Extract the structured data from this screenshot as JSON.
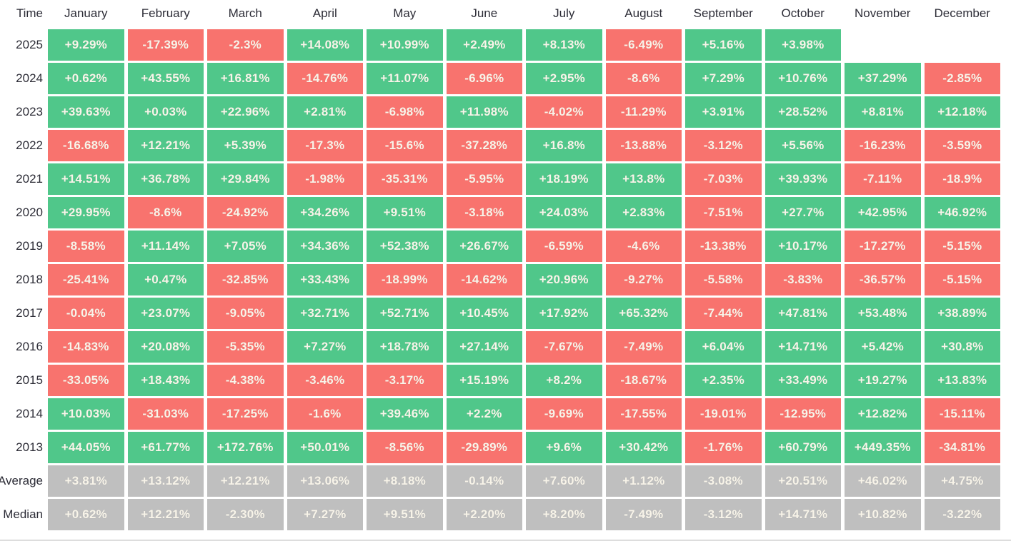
{
  "header": {
    "time_label": "Time"
  },
  "colors": {
    "positive": "#50c78a",
    "negative": "#f8736e",
    "summary": "#bfbfbf",
    "cell_text": "#f8f4e9",
    "label_text": "#2d2d37"
  },
  "chart_data": {
    "type": "heatmap",
    "unit": "%",
    "x_categories": [
      "January",
      "February",
      "March",
      "April",
      "May",
      "June",
      "July",
      "August",
      "September",
      "October",
      "November",
      "December"
    ],
    "y_categories": [
      "2025",
      "2024",
      "2023",
      "2022",
      "2021",
      "2020",
      "2019",
      "2018",
      "2017",
      "2016",
      "2015",
      "2014",
      "2013",
      "Average",
      "Median"
    ],
    "rows": [
      {
        "label": "2025",
        "type": "year",
        "values": [
          "+9.29%",
          "-17.39%",
          "-2.3%",
          "+14.08%",
          "+10.99%",
          "+2.49%",
          "+8.13%",
          "-6.49%",
          "+5.16%",
          "+3.98%",
          null,
          null
        ]
      },
      {
        "label": "2024",
        "type": "year",
        "values": [
          "+0.62%",
          "+43.55%",
          "+16.81%",
          "-14.76%",
          "+11.07%",
          "-6.96%",
          "+2.95%",
          "-8.6%",
          "+7.29%",
          "+10.76%",
          "+37.29%",
          "-2.85%"
        ]
      },
      {
        "label": "2023",
        "type": "year",
        "values": [
          "+39.63%",
          "+0.03%",
          "+22.96%",
          "+2.81%",
          "-6.98%",
          "+11.98%",
          "-4.02%",
          "-11.29%",
          "+3.91%",
          "+28.52%",
          "+8.81%",
          "+12.18%"
        ]
      },
      {
        "label": "2022",
        "type": "year",
        "values": [
          "-16.68%",
          "+12.21%",
          "+5.39%",
          "-17.3%",
          "-15.6%",
          "-37.28%",
          "+16.8%",
          "-13.88%",
          "-3.12%",
          "+5.56%",
          "-16.23%",
          "-3.59%"
        ]
      },
      {
        "label": "2021",
        "type": "year",
        "values": [
          "+14.51%",
          "+36.78%",
          "+29.84%",
          "-1.98%",
          "-35.31%",
          "-5.95%",
          "+18.19%",
          "+13.8%",
          "-7.03%",
          "+39.93%",
          "-7.11%",
          "-18.9%"
        ]
      },
      {
        "label": "2020",
        "type": "year",
        "values": [
          "+29.95%",
          "-8.6%",
          "-24.92%",
          "+34.26%",
          "+9.51%",
          "-3.18%",
          "+24.03%",
          "+2.83%",
          "-7.51%",
          "+27.7%",
          "+42.95%",
          "+46.92%"
        ]
      },
      {
        "label": "2019",
        "type": "year",
        "values": [
          "-8.58%",
          "+11.14%",
          "+7.05%",
          "+34.36%",
          "+52.38%",
          "+26.67%",
          "-6.59%",
          "-4.6%",
          "-13.38%",
          "+10.17%",
          "-17.27%",
          "-5.15%"
        ]
      },
      {
        "label": "2018",
        "type": "year",
        "values": [
          "-25.41%",
          "+0.47%",
          "-32.85%",
          "+33.43%",
          "-18.99%",
          "-14.62%",
          "+20.96%",
          "-9.27%",
          "-5.58%",
          "-3.83%",
          "-36.57%",
          "-5.15%"
        ]
      },
      {
        "label": "2017",
        "type": "year",
        "values": [
          "-0.04%",
          "+23.07%",
          "-9.05%",
          "+32.71%",
          "+52.71%",
          "+10.45%",
          "+17.92%",
          "+65.32%",
          "-7.44%",
          "+47.81%",
          "+53.48%",
          "+38.89%"
        ]
      },
      {
        "label": "2016",
        "type": "year",
        "values": [
          "-14.83%",
          "+20.08%",
          "-5.35%",
          "+7.27%",
          "+18.78%",
          "+27.14%",
          "-7.67%",
          "-7.49%",
          "+6.04%",
          "+14.71%",
          "+5.42%",
          "+30.8%"
        ]
      },
      {
        "label": "2015",
        "type": "year",
        "values": [
          "-33.05%",
          "+18.43%",
          "-4.38%",
          "-3.46%",
          "-3.17%",
          "+15.19%",
          "+8.2%",
          "-18.67%",
          "+2.35%",
          "+33.49%",
          "+19.27%",
          "+13.83%"
        ]
      },
      {
        "label": "2014",
        "type": "year",
        "values": [
          "+10.03%",
          "-31.03%",
          "-17.25%",
          "-1.6%",
          "+39.46%",
          "+2.2%",
          "-9.69%",
          "-17.55%",
          "-19.01%",
          "-12.95%",
          "+12.82%",
          "-15.11%"
        ]
      },
      {
        "label": "2013",
        "type": "year",
        "values": [
          "+44.05%",
          "+61.77%",
          "+172.76%",
          "+50.01%",
          "-8.56%",
          "-29.89%",
          "+9.6%",
          "+30.42%",
          "-1.76%",
          "+60.79%",
          "+449.35%",
          "-34.81%"
        ]
      },
      {
        "label": "Average",
        "type": "summary",
        "values": [
          "+3.81%",
          "+13.12%",
          "+12.21%",
          "+13.06%",
          "+8.18%",
          "-0.14%",
          "+7.60%",
          "+1.12%",
          "-3.08%",
          "+20.51%",
          "+46.02%",
          "+4.75%"
        ]
      },
      {
        "label": "Median",
        "type": "summary",
        "values": [
          "+0.62%",
          "+12.21%",
          "-2.30%",
          "+7.27%",
          "+9.51%",
          "+2.20%",
          "+8.20%",
          "-7.49%",
          "-3.12%",
          "+14.71%",
          "+10.82%",
          "-3.22%"
        ]
      }
    ]
  }
}
